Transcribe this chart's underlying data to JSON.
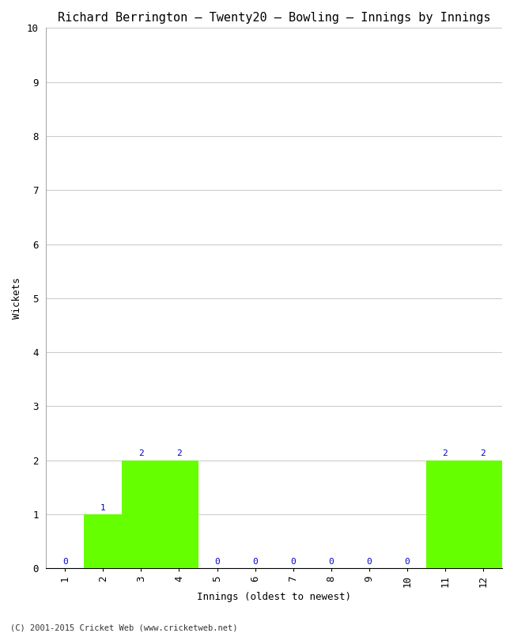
{
  "title": "Richard Berrington – Twenty20 – Bowling – Innings by Innings",
  "xlabel": "Innings (oldest to newest)",
  "ylabel": "Wickets",
  "categories": [
    1,
    2,
    3,
    4,
    5,
    6,
    7,
    8,
    9,
    10,
    11,
    12
  ],
  "values": [
    0,
    1,
    2,
    2,
    0,
    0,
    0,
    0,
    0,
    0,
    2,
    2
  ],
  "bar_color": "#66ff00",
  "annotation_color": "#0000cc",
  "ylim": [
    0,
    10
  ],
  "yticks": [
    0,
    1,
    2,
    3,
    4,
    5,
    6,
    7,
    8,
    9,
    10
  ],
  "background_color": "#ffffff",
  "plot_bg_color": "#ffffff",
  "grid_color": "#cccccc",
  "title_fontsize": 11,
  "axis_label_fontsize": 9,
  "tick_fontsize": 9,
  "annotation_fontsize": 8,
  "footer": "(C) 2001-2015 Cricket Web (www.cricketweb.net)"
}
